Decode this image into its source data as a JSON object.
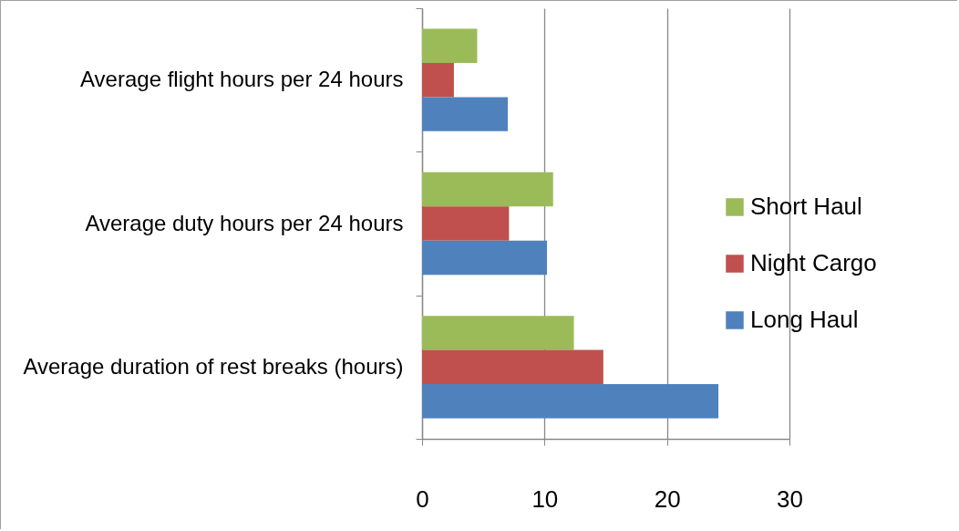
{
  "chart_data": {
    "type": "bar",
    "orientation": "horizontal",
    "categories": [
      "Average flight hours per 24 hours",
      "Average duty hours per 24 hours",
      "Average duration of rest breaks (hours)"
    ],
    "series": [
      {
        "name": "Short Haul",
        "color": "#9bbb59",
        "values": [
          4.5,
          10.7,
          12.4
        ]
      },
      {
        "name": "Night Cargo",
        "color": "#c0504d",
        "values": [
          2.6,
          7.1,
          14.8
        ]
      },
      {
        "name": "Long Haul",
        "color": "#4f81bd",
        "values": [
          7.0,
          10.2,
          24.2
        ]
      }
    ],
    "xlim": [
      0,
      30
    ],
    "xticks": [
      0,
      10,
      20,
      30
    ],
    "grid": "x",
    "legend": "right"
  }
}
